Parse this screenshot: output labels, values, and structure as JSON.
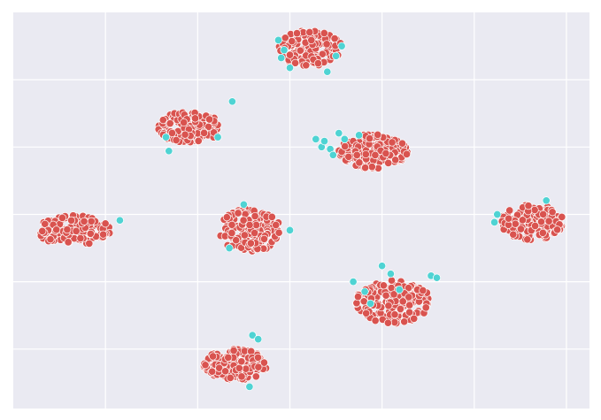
{
  "chart_data": {
    "type": "scatter",
    "title": "",
    "xlabel": "",
    "ylabel": "",
    "grid": true,
    "legend": "none",
    "xlim": [
      0,
      100
    ],
    "ylim": [
      0,
      100
    ],
    "xticks": [
      16,
      32,
      48,
      64,
      80,
      96
    ],
    "yticks": [
      15,
      32,
      49,
      66,
      83
    ],
    "background": "#eaeaf2",
    "colors": {
      "class_0": "#d9534f",
      "class_1": "#4fd3d3"
    },
    "series": [
      {
        "color_key": "class_0",
        "clusters": [
          {
            "cx": 51.5,
            "cy": 91,
            "rx": 5.5,
            "ry": 4.5,
            "n": 150
          },
          {
            "cx": 30.5,
            "cy": 71,
            "rx": 5.5,
            "ry": 4.0,
            "n": 140
          },
          {
            "cx": 62.5,
            "cy": 65,
            "rx": 6.0,
            "ry": 4.5,
            "n": 170
          },
          {
            "cx": 10.5,
            "cy": 45,
            "rx": 6.5,
            "ry": 3.8,
            "n": 150
          },
          {
            "cx": 41.0,
            "cy": 45,
            "rx": 5.5,
            "ry": 5.5,
            "n": 170
          },
          {
            "cx": 90.0,
            "cy": 47,
            "rx": 5.5,
            "ry": 4.5,
            "n": 150
          },
          {
            "cx": 66.0,
            "cy": 27,
            "rx": 6.5,
            "ry": 5.5,
            "n": 170
          },
          {
            "cx": 38.5,
            "cy": 11,
            "rx": 5.5,
            "ry": 4.0,
            "n": 150
          }
        ]
      },
      {
        "color_key": "class_1",
        "points": [
          [
            46.0,
            93.0
          ],
          [
            47.0,
            90.5
          ],
          [
            46.5,
            88.5
          ],
          [
            48.0,
            86.0
          ],
          [
            56.0,
            89.0
          ],
          [
            57.0,
            91.5
          ],
          [
            54.5,
            85.0
          ],
          [
            38.0,
            77.5
          ],
          [
            26.5,
            68.5
          ],
          [
            27.0,
            65.0
          ],
          [
            35.5,
            68.5
          ],
          [
            52.5,
            68.0
          ],
          [
            53.5,
            66.0
          ],
          [
            55.0,
            65.5
          ],
          [
            54.0,
            67.5
          ],
          [
            56.5,
            69.5
          ],
          [
            57.5,
            68.0
          ],
          [
            60.0,
            69.0
          ],
          [
            55.5,
            64.0
          ],
          [
            18.5,
            47.5
          ],
          [
            40.0,
            51.5
          ],
          [
            48.0,
            45.0
          ],
          [
            37.5,
            40.5
          ],
          [
            84.0,
            49.0
          ],
          [
            83.5,
            47.0
          ],
          [
            92.5,
            52.5
          ],
          [
            59.0,
            32.0
          ],
          [
            61.0,
            29.5
          ],
          [
            64.0,
            36.0
          ],
          [
            65.5,
            34.0
          ],
          [
            67.0,
            30.0
          ],
          [
            72.5,
            33.5
          ],
          [
            73.5,
            33.0
          ],
          [
            62.0,
            26.5
          ],
          [
            41.5,
            18.5
          ],
          [
            42.5,
            17.5
          ],
          [
            41.0,
            5.5
          ]
        ]
      }
    ]
  }
}
